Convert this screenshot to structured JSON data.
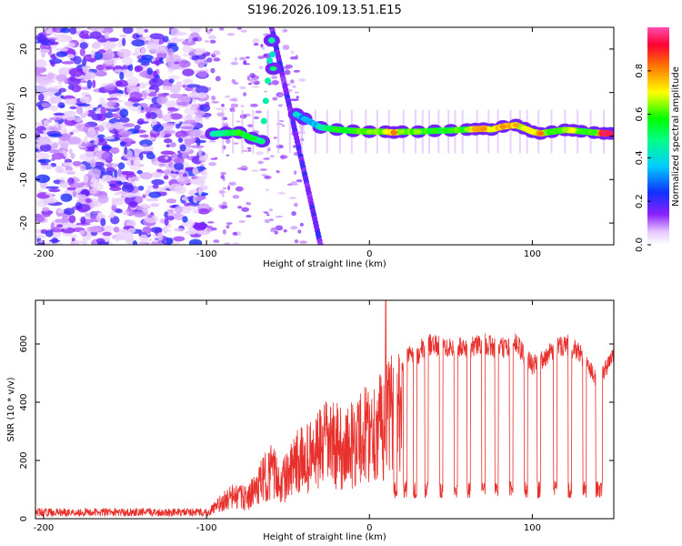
{
  "title": "S196.2026.109.13.51.E15",
  "chart_data": [
    {
      "type": "heatmap",
      "xlabel": "Height of straight line (km)",
      "ylabel": "Frequency (Hz)",
      "xlim": [
        -205,
        150
      ],
      "ylim": [
        -25,
        25
      ],
      "x_ticks": [
        -200,
        -100,
        0,
        100
      ],
      "x_tick_labels": [
        "-200",
        "-100",
        "0",
        "100"
      ],
      "y_ticks": [
        -20,
        -10,
        0,
        10,
        20
      ],
      "y_tick_labels": [
        "-20",
        "-10",
        "0",
        "10",
        "20"
      ],
      "colorbar": {
        "label": "Normalized spectral amplitude",
        "range": [
          0,
          1
        ],
        "ticks": [
          0.0,
          0.2,
          0.4,
          0.6,
          0.8
        ],
        "tick_labels": [
          "0.0",
          "0.2",
          "0.4",
          "0.6",
          "0.8"
        ]
      },
      "signal_track": [
        {
          "x": -96,
          "f": 0.5,
          "a": 0.45
        },
        {
          "x": -88,
          "f": 0.7,
          "a": 0.5
        },
        {
          "x": -80,
          "f": 0.8,
          "a": 0.6
        },
        {
          "x": -72,
          "f": -0.5,
          "a": 0.55
        },
        {
          "x": -66,
          "f": -1.2,
          "a": 0.5
        },
        {
          "x": -60,
          "f": 22.0,
          "a": 0.45
        },
        {
          "x": -59,
          "f": 15.5,
          "a": 0.5
        },
        {
          "x": -45,
          "f": 5.0,
          "a": 0.4
        },
        {
          "x": -40,
          "f": 4.0,
          "a": 0.35
        },
        {
          "x": -30,
          "f": 2.0,
          "a": 0.45
        },
        {
          "x": -20,
          "f": 1.5,
          "a": 0.6
        },
        {
          "x": -10,
          "f": 1.2,
          "a": 0.6
        },
        {
          "x": 0,
          "f": 1.0,
          "a": 0.65
        },
        {
          "x": 10,
          "f": 1.0,
          "a": 0.7
        },
        {
          "x": 15,
          "f": 0.8,
          "a": 0.82
        },
        {
          "x": 20,
          "f": 1.0,
          "a": 0.65
        },
        {
          "x": 30,
          "f": 1.0,
          "a": 0.65
        },
        {
          "x": 40,
          "f": 1.2,
          "a": 0.6
        },
        {
          "x": 50,
          "f": 1.3,
          "a": 0.6
        },
        {
          "x": 60,
          "f": 1.5,
          "a": 0.65
        },
        {
          "x": 65,
          "f": 1.6,
          "a": 0.78
        },
        {
          "x": 70,
          "f": 1.7,
          "a": 0.8
        },
        {
          "x": 75,
          "f": 1.5,
          "a": 0.7
        },
        {
          "x": 82,
          "f": 2.2,
          "a": 0.8
        },
        {
          "x": 90,
          "f": 2.5,
          "a": 0.78
        },
        {
          "x": 95,
          "f": 1.8,
          "a": 0.7
        },
        {
          "x": 100,
          "f": 1.0,
          "a": 0.7
        },
        {
          "x": 105,
          "f": 0.6,
          "a": 0.82
        },
        {
          "x": 112,
          "f": 1.0,
          "a": 0.6
        },
        {
          "x": 120,
          "f": 1.4,
          "a": 0.65
        },
        {
          "x": 125,
          "f": 1.3,
          "a": 0.7
        },
        {
          "x": 130,
          "f": 1.1,
          "a": 0.6
        },
        {
          "x": 138,
          "f": 0.8,
          "a": 0.6
        },
        {
          "x": 144,
          "f": 0.6,
          "a": 0.95
        },
        {
          "x": 148,
          "f": 0.6,
          "a": 0.95
        }
      ],
      "noise_region_x": [
        -205,
        -100
      ]
    },
    {
      "type": "line",
      "xlabel": "Height of straight line (km)",
      "ylabel": "SNR (10 * v/v)",
      "xlim": [
        -205,
        150
      ],
      "ylim": [
        0,
        750
      ],
      "x_ticks": [
        -200,
        -100,
        0,
        100
      ],
      "x_tick_labels": [
        "-200",
        "-100",
        "0",
        "100"
      ],
      "y_ticks": [
        0,
        200,
        400,
        600
      ],
      "y_tick_labels": [
        "0",
        "200",
        "400",
        "600"
      ],
      "series": [
        {
          "name": "SNR",
          "color": "#e8302c",
          "envelope": {
            "x": [
              -205,
              -150,
              -100,
              -95,
              -90,
              -85,
              -80,
              -75,
              -70,
              -65,
              -60,
              -55,
              -50,
              -45,
              -40,
              -35,
              -30,
              -25,
              -20,
              -15,
              -10,
              -5,
              0,
              5,
              10,
              15,
              20,
              25,
              30,
              35,
              40,
              50,
              60,
              70,
              80,
              90,
              100,
              110,
              120,
              130,
              140,
              150
            ],
            "y": [
              20,
              20,
              25,
              60,
              90,
              120,
              120,
              110,
              160,
              220,
              260,
              200,
              230,
              300,
              330,
              340,
              380,
              420,
              400,
              380,
              410,
              450,
              480,
              500,
              530,
              580,
              560,
              610,
              600,
              640,
              630,
              630,
              620,
              640,
              620,
              640,
              560,
              600,
              640,
              600,
              500,
              600
            ]
          },
          "peak": {
            "x": 10,
            "y": 750
          },
          "dropouts_x": [
            16,
            22,
            28,
            35,
            44,
            53,
            61,
            70,
            78,
            87,
            96,
            104,
            114,
            123,
            132,
            140,
            142
          ],
          "dropout_level": 100
        }
      ]
    }
  ]
}
